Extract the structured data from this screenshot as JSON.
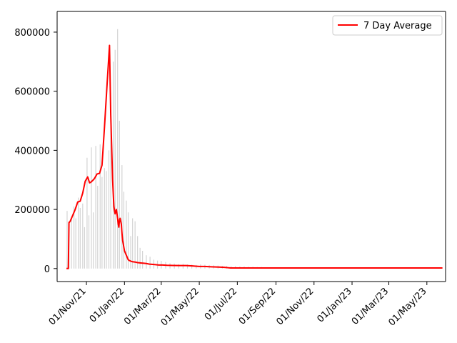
{
  "chart_data": {
    "type": "bar+line",
    "title": "",
    "xlabel": "",
    "ylabel": "",
    "x_axis": {
      "type": "date",
      "range": [
        "2021-09-15",
        "2023-05-31"
      ],
      "ticks": [
        {
          "date": "2021-11-01",
          "label": "01/Nov/21"
        },
        {
          "date": "2022-01-01",
          "label": "01/Jan/22"
        },
        {
          "date": "2022-03-01",
          "label": "01/Mar/22"
        },
        {
          "date": "2022-05-01",
          "label": "01/May/22"
        },
        {
          "date": "2022-07-01",
          "label": "01/Jul/22"
        },
        {
          "date": "2022-09-01",
          "label": "01/Sep/22"
        },
        {
          "date": "2022-11-01",
          "label": "01/Nov/22"
        },
        {
          "date": "2023-01-01",
          "label": "01/Jan/23"
        },
        {
          "date": "2023-03-01",
          "label": "01/Mar/23"
        },
        {
          "date": "2023-05-01",
          "label": "01/May/23"
        }
      ]
    },
    "y_axis": {
      "range": [
        -44000,
        870000
      ],
      "ticks": [
        {
          "value": 0,
          "label": "0"
        },
        {
          "value": 200000,
          "label": "200000"
        },
        {
          "value": 400000,
          "label": "400000"
        },
        {
          "value": 600000,
          "label": "600000"
        },
        {
          "value": 800000,
          "label": "800000"
        }
      ]
    },
    "grid": false,
    "legend": {
      "placement": "top-right",
      "entries": [
        {
          "label": "7 Day Average",
          "color": "#ff0000"
        }
      ]
    },
    "daily_bars": {
      "color": "#d3d3d3",
      "x": [
        "2021-10-01",
        "2021-10-04",
        "2021-10-08",
        "2021-10-12",
        "2021-10-15",
        "2021-10-19",
        "2021-10-22",
        "2021-10-26",
        "2021-10-29",
        "2021-11-02",
        "2021-11-05",
        "2021-11-09",
        "2021-11-12",
        "2021-11-16",
        "2021-11-19",
        "2021-11-23",
        "2021-11-26",
        "2021-11-30",
        "2021-12-03",
        "2021-12-07",
        "2021-12-10",
        "2021-12-14",
        "2021-12-17",
        "2021-12-21",
        "2021-12-24",
        "2021-12-28",
        "2021-12-31",
        "2022-01-04",
        "2022-01-07",
        "2022-01-11",
        "2022-01-14",
        "2022-01-18",
        "2022-01-22",
        "2022-01-26",
        "2022-01-30",
        "2022-02-05",
        "2022-02-11",
        "2022-02-17",
        "2022-02-23",
        "2022-03-01",
        "2022-03-08",
        "2022-03-15",
        "2022-03-22",
        "2022-03-29",
        "2022-04-05",
        "2022-04-12",
        "2022-04-19",
        "2022-04-26",
        "2022-05-03",
        "2022-05-10",
        "2022-05-17",
        "2022-05-24",
        "2022-05-31",
        "2022-06-07",
        "2022-06-14",
        "2022-06-21",
        "2022-06-28",
        "2022-07-05",
        "2022-07-12",
        "2022-07-19",
        "2022-07-26",
        "2022-08-02",
        "2022-08-09"
      ],
      "values": [
        195000,
        160000,
        175000,
        210000,
        170000,
        240000,
        205000,
        220000,
        140000,
        375000,
        180000,
        410000,
        190000,
        415000,
        280000,
        420000,
        310000,
        340000,
        330000,
        400000,
        480000,
        700000,
        740000,
        810000,
        500000,
        350000,
        260000,
        230000,
        190000,
        110000,
        170000,
        160000,
        110000,
        70000,
        60000,
        45000,
        40000,
        30000,
        27000,
        26000,
        22000,
        18000,
        17000,
        15000,
        16000,
        14000,
        13000,
        12000,
        14000,
        13000,
        12000,
        11000,
        10000,
        9000,
        9000,
        8000,
        8000,
        7000,
        7000,
        6000,
        6000,
        5000,
        5000
      ]
    },
    "series": [
      {
        "name": "7 Day Average",
        "color": "#ff0000",
        "x": [
          "2021-09-30",
          "2021-10-03",
          "2021-10-04",
          "2021-10-06",
          "2021-10-10",
          "2021-10-14",
          "2021-10-18",
          "2021-10-22",
          "2021-10-26",
          "2021-10-30",
          "2021-11-03",
          "2021-11-06",
          "2021-11-08",
          "2021-11-12",
          "2021-11-14",
          "2021-11-18",
          "2021-11-22",
          "2021-11-26",
          "2021-11-30",
          "2021-12-04",
          "2021-12-08",
          "2021-12-10",
          "2021-12-13",
          "2021-12-15",
          "2021-12-17",
          "2021-12-19",
          "2021-12-21",
          "2021-12-22",
          "2021-12-23",
          "2021-12-24",
          "2021-12-25",
          "2021-12-27",
          "2021-12-28",
          "2021-12-29",
          "2021-12-30",
          "2021-12-31",
          "2022-01-01",
          "2022-01-03",
          "2022-01-04",
          "2022-01-05",
          "2022-01-06",
          "2022-01-07",
          "2022-01-09",
          "2022-01-11",
          "2022-01-14",
          "2022-01-18",
          "2022-01-22",
          "2022-01-27",
          "2022-02-01",
          "2022-02-05",
          "2022-02-10",
          "2022-02-15",
          "2022-02-20",
          "2022-02-25",
          "2022-03-03",
          "2022-03-10",
          "2022-03-20",
          "2022-03-31",
          "2022-04-10",
          "2022-04-20",
          "2022-04-25",
          "2022-05-01",
          "2022-05-10",
          "2022-05-20",
          "2022-06-01",
          "2022-06-10",
          "2022-06-15",
          "2022-06-20",
          "2022-07-01",
          "2022-07-15",
          "2022-08-01",
          "2022-08-15",
          "2022-09-01",
          "2022-09-10",
          "2022-09-20",
          "2022-10-01",
          "2022-10-10",
          "2022-10-20",
          "2022-11-01",
          "2022-11-15",
          "2022-12-01",
          "2022-12-15",
          "2023-01-01",
          "2023-01-15",
          "2023-02-01",
          "2023-02-15",
          "2023-03-01",
          "2023-03-15",
          "2023-04-01",
          "2023-04-15",
          "2023-05-01",
          "2023-05-15",
          "2023-05-26"
        ],
        "values": [
          0,
          0,
          155000,
          160000,
          180000,
          200000,
          225000,
          228000,
          255000,
          295000,
          310000,
          290000,
          292000,
          300000,
          305000,
          320000,
          322000,
          350000,
          480000,
          620000,
          755000,
          520000,
          300000,
          210000,
          185000,
          200000,
          170000,
          150000,
          140000,
          165000,
          170000,
          150000,
          120000,
          95000,
          85000,
          72000,
          60000,
          50000,
          45000,
          40000,
          35000,
          30000,
          27000,
          25000,
          23000,
          22000,
          20000,
          19000,
          18000,
          17000,
          15000,
          14000,
          13000,
          12000,
          12000,
          11000,
          10500,
          10000,
          10000,
          9000,
          8000,
          7000,
          7000,
          6000,
          5000,
          4000,
          3000,
          2000,
          2000,
          2000,
          2000,
          2000,
          2000,
          2000,
          2000,
          2000,
          2000,
          2000,
          2000,
          2000,
          2000,
          2000,
          2000,
          2000,
          2000,
          2000,
          2000,
          2000,
          2000,
          2000,
          2000,
          2000,
          2000
        ]
      }
    ]
  }
}
